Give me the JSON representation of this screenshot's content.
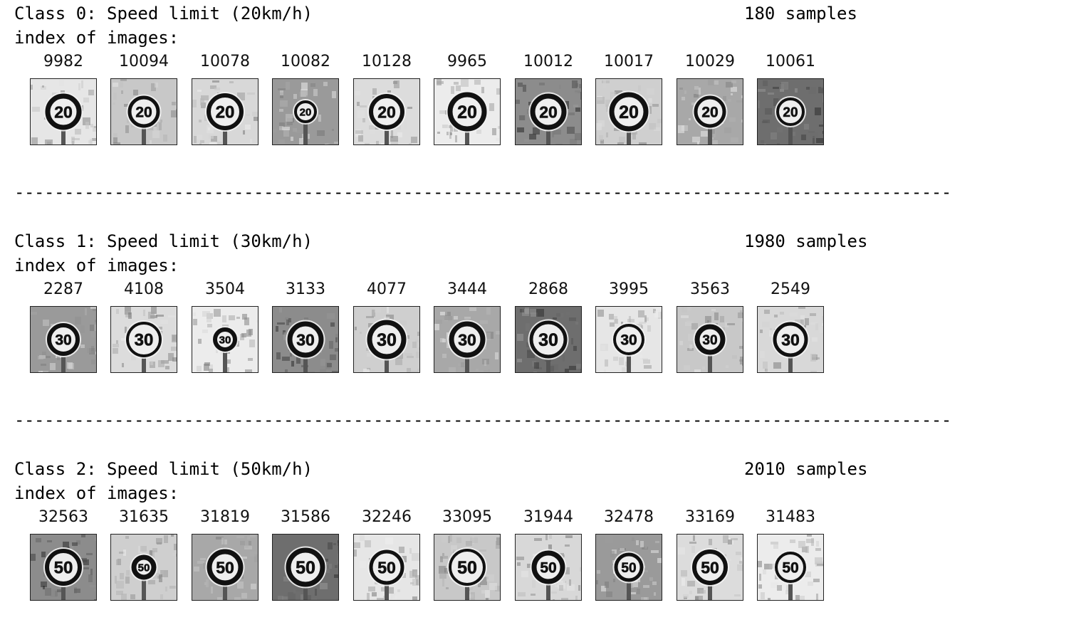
{
  "classes": [
    {
      "title": "Class 0: Speed limit (20km/h)",
      "samples": "180 samples",
      "index_label": "index of images:",
      "sign_text": "20",
      "indices": [
        "9982",
        "10094",
        "10078",
        "10082",
        "10128",
        "9965",
        "10012",
        "10017",
        "10029",
        "10061"
      ]
    },
    {
      "title": "Class 1: Speed limit (30km/h)",
      "samples": "1980 samples",
      "index_label": "index of images:",
      "sign_text": "30",
      "indices": [
        "2287",
        "4108",
        "3504",
        "3133",
        "4077",
        "3444",
        "2868",
        "3995",
        "3563",
        "2549"
      ]
    },
    {
      "title": "Class 2: Speed limit (50km/h)",
      "samples": "2010 samples",
      "index_label": "index of images:",
      "sign_text": "50",
      "indices": [
        "32563",
        "31635",
        "31819",
        "31586",
        "32246",
        "33095",
        "31944",
        "32478",
        "33169",
        "31483"
      ]
    }
  ],
  "divider_text": "----------------------------------------------------------------------------------------------"
}
